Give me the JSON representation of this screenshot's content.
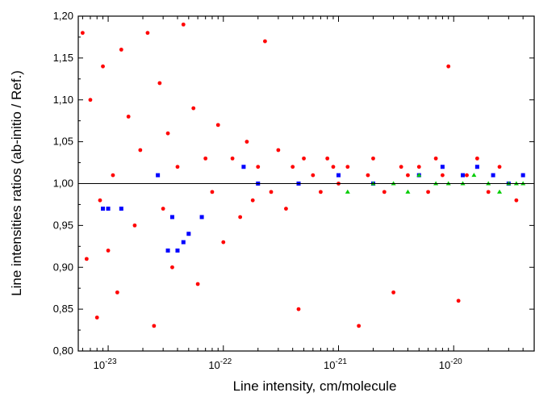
{
  "chart_data": {
    "type": "scatter",
    "title": "",
    "xlabel": "Line intensity, cm/molecule",
    "ylabel": "Line intensities ratios (ab-initio / Ref.)",
    "x_scale": "log",
    "x_range": [
      5.5e-24,
      5e-20
    ],
    "ylim": [
      0.8,
      1.2
    ],
    "x_ticks": [
      1e-23,
      1e-22,
      1e-21,
      1e-20
    ],
    "x_tick_labels": [
      {
        "base": "10",
        "exp": "-23"
      },
      {
        "base": "10",
        "exp": "-22"
      },
      {
        "base": "10",
        "exp": "-21"
      },
      {
        "base": "10",
        "exp": "-20"
      }
    ],
    "y_ticks": [
      0.8,
      0.85,
      0.9,
      0.95,
      1.0,
      1.05,
      1.1,
      1.15,
      1.2
    ],
    "y_tick_labels": [
      "0,80",
      "0,85",
      "0,90",
      "0,95",
      "1,00",
      "1,05",
      "1,10",
      "1,15",
      "1,20"
    ],
    "reference_line": 1.0,
    "grid": false,
    "legend": "none",
    "series": [
      {
        "color": "#ff0000",
        "marker": "circle",
        "points": [
          [
            6e-24,
            1.18
          ],
          [
            6.5e-24,
            0.91
          ],
          [
            7e-24,
            1.1
          ],
          [
            8e-24,
            0.84
          ],
          [
            8.5e-24,
            0.98
          ],
          [
            9e-24,
            1.14
          ],
          [
            1e-23,
            0.92
          ],
          [
            1.1e-23,
            1.01
          ],
          [
            1.2e-23,
            0.87
          ],
          [
            1.3e-23,
            1.16
          ],
          [
            1.5e-23,
            1.08
          ],
          [
            1.7e-23,
            0.95
          ],
          [
            1.9e-23,
            1.04
          ],
          [
            2.2e-23,
            1.18
          ],
          [
            2.5e-23,
            0.83
          ],
          [
            2.8e-23,
            1.12
          ],
          [
            3e-23,
            0.97
          ],
          [
            3.3e-23,
            1.06
          ],
          [
            3.6e-23,
            0.9
          ],
          [
            4e-23,
            1.02
          ],
          [
            4.5e-23,
            1.19
          ],
          [
            5e-23,
            0.94
          ],
          [
            5.5e-23,
            1.09
          ],
          [
            6e-23,
            0.88
          ],
          [
            7e-23,
            1.03
          ],
          [
            8e-23,
            0.99
          ],
          [
            9e-23,
            1.07
          ],
          [
            1e-22,
            0.93
          ],
          [
            1.2e-22,
            1.03
          ],
          [
            1.4e-22,
            0.96
          ],
          [
            1.6e-22,
            1.05
          ],
          [
            1.8e-22,
            0.98
          ],
          [
            2e-22,
            1.02
          ],
          [
            2.3e-22,
            1.17
          ],
          [
            2.6e-22,
            0.99
          ],
          [
            3e-22,
            1.04
          ],
          [
            3.5e-22,
            0.97
          ],
          [
            4e-22,
            1.02
          ],
          [
            4.5e-22,
            0.85
          ],
          [
            5e-22,
            1.03
          ],
          [
            6e-22,
            1.01
          ],
          [
            7e-22,
            0.99
          ],
          [
            8e-22,
            1.03
          ],
          [
            9e-22,
            1.02
          ],
          [
            1e-21,
            1.0
          ],
          [
            1.2e-21,
            1.02
          ],
          [
            1.5e-21,
            0.83
          ],
          [
            1.8e-21,
            1.01
          ],
          [
            2e-21,
            1.03
          ],
          [
            2.5e-21,
            0.99
          ],
          [
            3e-21,
            0.87
          ],
          [
            3.5e-21,
            1.02
          ],
          [
            4e-21,
            1.01
          ],
          [
            5e-21,
            1.02
          ],
          [
            6e-21,
            0.99
          ],
          [
            7e-21,
            1.03
          ],
          [
            8e-21,
            1.01
          ],
          [
            9e-21,
            1.14
          ],
          [
            1.1e-20,
            0.86
          ],
          [
            1.3e-20,
            1.01
          ],
          [
            1.6e-20,
            1.03
          ],
          [
            2e-20,
            0.99
          ],
          [
            2.5e-20,
            1.02
          ],
          [
            3e-20,
            1.0
          ],
          [
            3.5e-20,
            0.98
          ],
          [
            4e-20,
            1.01
          ]
        ]
      },
      {
        "color": "#0000ff",
        "marker": "square",
        "points": [
          [
            9e-24,
            0.97
          ],
          [
            1e-23,
            0.97
          ],
          [
            1.3e-23,
            0.97
          ],
          [
            2.7e-23,
            1.01
          ],
          [
            3.3e-23,
            0.92
          ],
          [
            3.6e-23,
            0.96
          ],
          [
            4e-23,
            0.92
          ],
          [
            4.5e-23,
            0.93
          ],
          [
            5e-23,
            0.94
          ],
          [
            6.5e-23,
            0.96
          ],
          [
            1.5e-22,
            1.02
          ],
          [
            2e-22,
            1.0
          ],
          [
            4.5e-22,
            1.0
          ],
          [
            1e-21,
            1.01
          ],
          [
            2e-21,
            1.0
          ],
          [
            5e-21,
            1.01
          ],
          [
            8e-21,
            1.02
          ],
          [
            1.2e-20,
            1.01
          ],
          [
            1.6e-20,
            1.02
          ],
          [
            2.2e-20,
            1.01
          ],
          [
            3e-20,
            1.0
          ],
          [
            4e-20,
            1.01
          ]
        ]
      },
      {
        "color": "#00cc00",
        "marker": "triangle",
        "points": [
          [
            1.2e-21,
            0.99
          ],
          [
            2e-21,
            1.0
          ],
          [
            3e-21,
            1.0
          ],
          [
            4e-21,
            0.99
          ],
          [
            5e-21,
            1.01
          ],
          [
            7e-21,
            1.0
          ],
          [
            9e-21,
            1.0
          ],
          [
            1.2e-20,
            1.0
          ],
          [
            1.5e-20,
            1.01
          ],
          [
            2e-20,
            1.0
          ],
          [
            2.5e-20,
            0.99
          ],
          [
            3e-20,
            1.0
          ],
          [
            3.5e-20,
            1.0
          ],
          [
            4e-20,
            1.0
          ]
        ]
      }
    ]
  }
}
